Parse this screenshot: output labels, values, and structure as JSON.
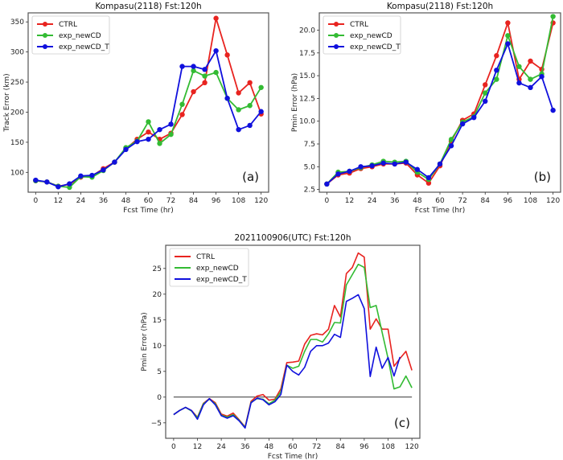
{
  "chart_data": [
    {
      "id": "a",
      "type": "line",
      "markers": true,
      "title": "Kompasu(2118) Fst:120h",
      "xlabel": "Fcst Time (hr)",
      "ylabel": "Track Error (km)",
      "panel_label": "(a)",
      "xlim": [
        -4,
        124
      ],
      "ylim": [
        67,
        365
      ],
      "xticks": [
        0,
        12,
        24,
        36,
        48,
        60,
        72,
        84,
        96,
        108,
        120
      ],
      "yticks": [
        100,
        150,
        200,
        250,
        300,
        350
      ],
      "ytick_format": "int",
      "legend_position": "top-left",
      "x": [
        0,
        6,
        12,
        18,
        24,
        30,
        36,
        42,
        48,
        54,
        60,
        66,
        72,
        78,
        84,
        90,
        96,
        102,
        108,
        114,
        120
      ],
      "series": [
        {
          "name": "CTRL",
          "color": "#e8231f",
          "values": [
            86,
            84,
            77,
            80,
            92,
            94,
            106,
            117,
            139,
            155,
            167,
            155,
            165,
            196,
            234,
            249,
            356,
            295,
            232,
            249,
            197
          ]
        },
        {
          "name": "exp_newCD",
          "color": "#33bb33",
          "values": [
            86,
            84,
            77,
            75,
            93,
            92,
            103,
            117,
            141,
            152,
            184,
            148,
            163,
            213,
            269,
            260,
            266,
            223,
            204,
            211,
            241
          ]
        },
        {
          "name": "exp_newCD_T",
          "color": "#1010dd",
          "values": [
            87,
            84,
            76,
            81,
            94,
            95,
            104,
            117,
            138,
            151,
            155,
            171,
            180,
            276,
            276,
            271,
            302,
            223,
            171,
            178,
            201
          ]
        }
      ]
    },
    {
      "id": "b",
      "type": "line",
      "markers": true,
      "title": "Kompasu(2118) Fst:120h",
      "xlabel": "Fcst Time (hr)",
      "ylabel": "Pmin Error (hPa)",
      "panel_label": "(b)",
      "xlim": [
        -4,
        124
      ],
      "ylim": [
        2.2,
        21.9
      ],
      "xticks": [
        0,
        12,
        24,
        36,
        48,
        60,
        72,
        84,
        96,
        108,
        120
      ],
      "yticks": [
        2.5,
        5.0,
        7.5,
        10.0,
        12.5,
        15.0,
        17.5,
        20.0
      ],
      "ytick_format": "fixed1",
      "legend_position": "top-left",
      "x": [
        0,
        6,
        12,
        18,
        24,
        30,
        36,
        42,
        48,
        54,
        60,
        66,
        72,
        78,
        84,
        90,
        96,
        102,
        108,
        114,
        120
      ],
      "series": [
        {
          "name": "CTRL",
          "color": "#e8231f",
          "values": [
            3.1,
            4.1,
            4.3,
            4.8,
            5.0,
            5.3,
            5.3,
            5.4,
            4.1,
            3.2,
            5.1,
            7.8,
            10.1,
            10.8,
            14.0,
            17.2,
            20.8,
            14.6,
            16.6,
            15.7,
            20.8
          ]
        },
        {
          "name": "exp_newCD",
          "color": "#33bb33",
          "values": [
            3.1,
            4.4,
            4.5,
            4.9,
            5.2,
            5.6,
            5.5,
            5.6,
            4.4,
            3.6,
            5.3,
            8.0,
            9.9,
            10.5,
            13.1,
            14.6,
            19.4,
            16.0,
            14.6,
            15.2,
            21.5
          ]
        },
        {
          "name": "exp_newCD_T",
          "color": "#1010dd",
          "values": [
            3.1,
            4.2,
            4.5,
            5.0,
            5.1,
            5.4,
            5.3,
            5.5,
            4.7,
            3.8,
            5.3,
            7.3,
            9.7,
            10.4,
            12.2,
            15.6,
            18.5,
            14.2,
            13.7,
            14.9,
            11.2
          ]
        }
      ]
    },
    {
      "id": "c",
      "type": "line",
      "markers": false,
      "title": "2021100906(UTC) Fst:120h",
      "xlabel": "Fcst Time (hr)",
      "ylabel": "Pmin Error (hPa)",
      "panel_label": "(c)",
      "xlim": [
        -4,
        124
      ],
      "ylim": [
        -8,
        29.5
      ],
      "xticks": [
        0,
        12,
        24,
        36,
        48,
        60,
        72,
        84,
        96,
        108,
        120
      ],
      "yticks": [
        -5,
        0,
        5,
        10,
        15,
        20,
        25
      ],
      "ytick_format": "int",
      "zero_line": true,
      "legend_position": "top-left",
      "x": [
        0,
        3,
        6,
        9,
        12,
        15,
        18,
        21,
        24,
        27,
        30,
        33,
        36,
        39,
        42,
        45,
        48,
        51,
        54,
        57,
        60,
        63,
        66,
        69,
        72,
        75,
        78,
        81,
        84,
        87,
        90,
        93,
        96,
        99,
        102,
        105,
        108,
        111,
        114,
        117,
        120
      ],
      "series": [
        {
          "name": "CTRL",
          "color": "#e8231f",
          "values": [
            -3.4,
            -2.6,
            -2.0,
            -2.6,
            -3.9,
            -1.2,
            -0.3,
            -1.1,
            -3.3,
            -3.7,
            -3.1,
            -4.4,
            -5.8,
            -0.8,
            0.2,
            0.5,
            -0.6,
            -0.4,
            1.6,
            6.7,
            6.8,
            7.0,
            10.3,
            12.0,
            12.3,
            12.1,
            13.2,
            17.8,
            15.6,
            24.0,
            25.2,
            28.0,
            27.2,
            13.2,
            15.2,
            13.2,
            13.2,
            6.0,
            7.5,
            8.9,
            5.2
          ]
        },
        {
          "name": "exp_newCD",
          "color": "#33bb33",
          "values": [
            -3.4,
            -2.6,
            -2.0,
            -2.7,
            -4.0,
            -1.3,
            -0.4,
            -1.3,
            -3.5,
            -3.9,
            -3.4,
            -4.5,
            -5.9,
            -1.0,
            -0.3,
            -0.4,
            -1.3,
            -0.6,
            1.0,
            6.2,
            5.6,
            6.0,
            8.9,
            11.2,
            11.2,
            10.7,
            12.3,
            14.5,
            14.4,
            21.8,
            23.8,
            25.8,
            25.2,
            17.4,
            17.8,
            12.6,
            7.5,
            1.6,
            2.0,
            4.1,
            1.8
          ]
        },
        {
          "name": "exp_newCD_T",
          "color": "#1010dd",
          "values": [
            -3.4,
            -2.6,
            -2.0,
            -2.6,
            -4.3,
            -1.5,
            -0.3,
            -1.5,
            -3.6,
            -4.1,
            -3.6,
            -4.6,
            -6.0,
            -1.1,
            -0.2,
            -0.5,
            -1.5,
            -0.9,
            0.5,
            6.2,
            5.0,
            4.3,
            5.8,
            8.9,
            10.0,
            10.0,
            10.5,
            12.2,
            11.6,
            18.6,
            19.2,
            19.9,
            17.2,
            4.0,
            9.7,
            5.6,
            7.7,
            4.1,
            7.8,
            null,
            null
          ]
        }
      ]
    }
  ]
}
